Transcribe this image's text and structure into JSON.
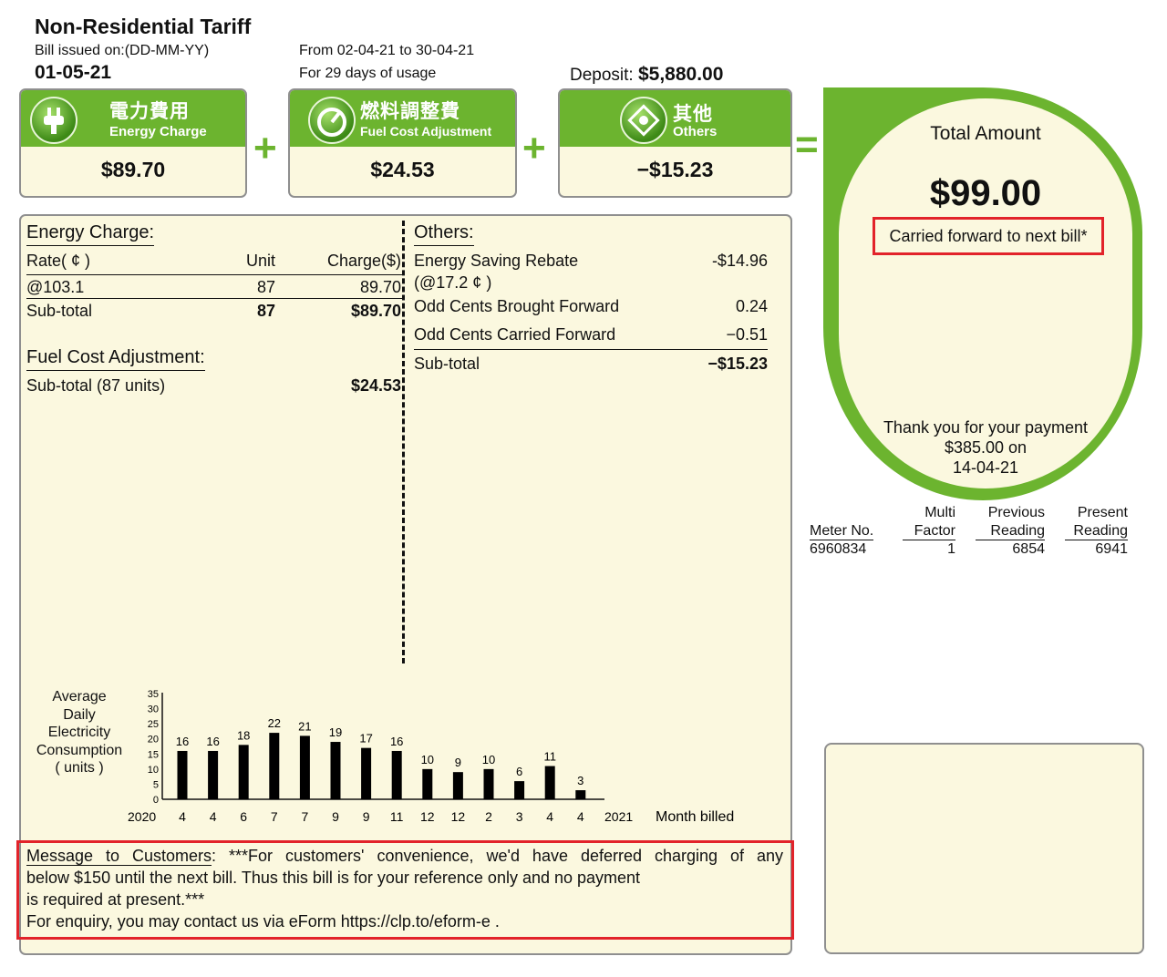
{
  "header": {
    "title": "Non-Residential Tariff",
    "issued_label": "Bill issued on:(DD-MM-YY)",
    "issued_date": "01-05-21",
    "period": "From 02-04-21 to 30-04-21",
    "days": "For 29 days of usage",
    "deposit_label": "Deposit:",
    "deposit_value": "$5,880.00"
  },
  "cards": [
    {
      "zh": "電力費用",
      "en": "Energy Charge",
      "amount": "$89.70",
      "icon": "plug-icon"
    },
    {
      "zh": "燃料調整費",
      "en": "Fuel Cost Adjustment",
      "amount": "$24.53",
      "icon": "gauge-icon"
    },
    {
      "zh": "其他",
      "en": "Others",
      "amount": "−$15.23",
      "icon": "diamond-icon"
    }
  ],
  "operators": {
    "plus": "+",
    "equals": "="
  },
  "total": {
    "label": "Total Amount",
    "amount": "$99.00",
    "carried": "Carried forward to next bill*",
    "thanks_1": "Thank you for your payment",
    "thanks_2": "$385.00 on",
    "thanks_3": "14-04-21"
  },
  "meter": {
    "headers": [
      "Meter No.",
      "Multi Factor",
      "Previous Reading",
      "Present Reading"
    ],
    "h_multi_1": "Multi",
    "h_multi_2": "Factor",
    "h_prev_1": "Previous",
    "h_prev_2": "Reading",
    "h_pres_1": "Present",
    "h_pres_2": "Reading",
    "h_meter": "Meter No.",
    "meter_no": "6960834",
    "factor": "1",
    "previous": "6854",
    "present": "6941"
  },
  "energy": {
    "title": "Energy Charge:",
    "col_rate": "Rate( ¢ )",
    "col_unit": "Unit",
    "col_charge": "Charge($)",
    "rate": "@103.1",
    "unit": "87",
    "charge": "89.70",
    "subtotal_label": "Sub-total",
    "subtotal_unit": "87",
    "subtotal_charge": "$89.70"
  },
  "fuel": {
    "title": "Fuel Cost Adjustment:",
    "subtotal_label": "Sub-total (87 units)",
    "subtotal_value": "$24.53"
  },
  "others": {
    "title": "Others:",
    "rebate_label": "Energy Saving Rebate",
    "rebate_value": "-$14.96",
    "rebate_rate": "(@17.2 ¢ )",
    "brought_label": "Odd Cents Brought Forward",
    "brought_value": "0.24",
    "carried_label": "Odd Cents Carried Forward",
    "carried_value": "−0.51",
    "subtotal_label": "Sub-total",
    "subtotal_value": "−$15.23"
  },
  "chart_label": {
    "l1": "Average",
    "l2": "Daily",
    "l3": "Electricity",
    "l4": "Consumption",
    "l5": "( units )"
  },
  "chart_data": {
    "type": "bar",
    "ylabel": "Average Daily Electricity Consumption ( units )",
    "xlabel": "Month billed",
    "ylim": [
      0,
      35
    ],
    "yticks": [
      0,
      5,
      10,
      15,
      20,
      25,
      30,
      35
    ],
    "year_start": "2020",
    "year_end": "2021",
    "categories": [
      "4",
      "4",
      "6",
      "7",
      "7",
      "9",
      "9",
      "11",
      "12",
      "12",
      "2",
      "3",
      "4",
      "4"
    ],
    "values": [
      16,
      16,
      18,
      22,
      21,
      19,
      17,
      16,
      10,
      9,
      10,
      6,
      11,
      3
    ]
  },
  "message": {
    "title": "Message to Customers",
    "line1": ": ***For customers' convenience, we'd have deferred charging of any",
    "line2": "below $150 until the next bill. Thus this bill is for your reference only and no payment",
    "line3": "is required at present.***",
    "line4": "For enquiry, you may contact us via eForm https://clp.to/eform-e ."
  }
}
